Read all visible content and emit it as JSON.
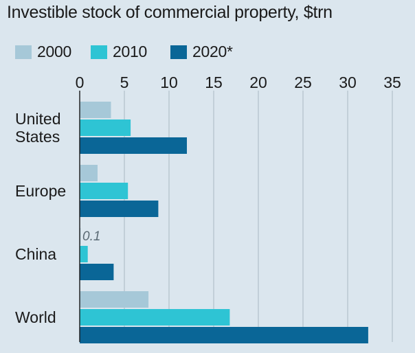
{
  "chart_data": {
    "type": "bar",
    "orientation": "horizontal",
    "title": "Investible stock of commercial property, $trn",
    "categories": [
      "United States",
      "Europe",
      "China",
      "World"
    ],
    "category_lines": [
      [
        "United",
        "States"
      ],
      [
        "Europe"
      ],
      [
        "China"
      ],
      [
        "World"
      ]
    ],
    "series": [
      {
        "name": "2000",
        "color": "#a6c8d8",
        "values": [
          3.5,
          2.0,
          0.1,
          7.7
        ]
      },
      {
        "name": "2010",
        "color": "#2ec4d4",
        "values": [
          5.7,
          5.4,
          0.9,
          16.8
        ]
      },
      {
        "name": "2020*",
        "color": "#0a6697",
        "values": [
          12.0,
          8.8,
          3.8,
          32.3
        ]
      }
    ],
    "annotations": [
      {
        "category": "China",
        "series": "2000",
        "text": "0.1"
      }
    ],
    "xlim": [
      0,
      35
    ],
    "x_ticks": [
      0,
      5,
      10,
      15,
      20,
      25,
      30,
      35
    ],
    "tick_position": "top",
    "grid": true,
    "legend_position": "top-left"
  }
}
